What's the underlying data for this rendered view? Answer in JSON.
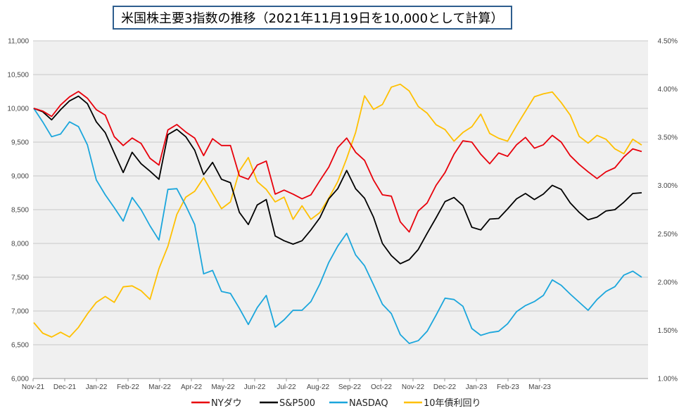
{
  "chart_data": {
    "type": "line",
    "title": "米国株主要3指数の推移（2021年11月19日を10,000として計算）",
    "x_ticks": [
      "Nov-21",
      "Dec-21",
      "Jan-22",
      "Feb-22",
      "Mar-22",
      "Apr-22",
      "May-22",
      "Jun-22",
      "Jul-22",
      "Aug-22",
      "Sep-22",
      "Oct-22",
      "Nov-22",
      "Dec-22",
      "Jan-23",
      "Feb-23",
      "Mar-23"
    ],
    "ylim_left": [
      6000,
      11000
    ],
    "yticks_left": [
      "6,000",
      "6,500",
      "7,000",
      "7,500",
      "8,000",
      "8,500",
      "9,000",
      "9,500",
      "10,000",
      "10,500",
      "11,000"
    ],
    "ylim_right": [
      1.0,
      4.5
    ],
    "yticks_right": [
      "1.00%",
      "1.50%",
      "2.00%",
      "2.50%",
      "3.00%",
      "3.50%",
      "4.00%",
      "4.50%"
    ],
    "grid": true,
    "legend_position": "bottom",
    "series": [
      {
        "name": "NYダウ",
        "axis": "left",
        "color": "#e8000b",
        "values": [
          10000,
          9960,
          9880,
          10050,
          10170,
          10250,
          10150,
          9980,
          9900,
          9580,
          9450,
          9560,
          9480,
          9260,
          9160,
          9680,
          9760,
          9650,
          9560,
          9300,
          9550,
          9450,
          9450,
          9000,
          8950,
          9160,
          9220,
          8730,
          8790,
          8730,
          8660,
          8720,
          8930,
          9130,
          9420,
          9560,
          9350,
          9230,
          8940,
          8720,
          8700,
          8320,
          8170,
          8480,
          8600,
          8860,
          9050,
          9320,
          9520,
          9500,
          9320,
          9180,
          9340,
          9290,
          9460,
          9570,
          9410,
          9460,
          9600,
          9500,
          9300,
          9170,
          9060,
          8960,
          9060,
          9120,
          9280,
          9400,
          9360
        ]
      },
      {
        "name": "S&P500",
        "axis": "left",
        "color": "#000000",
        "values": [
          10000,
          9950,
          9830,
          9980,
          10110,
          10180,
          10070,
          9800,
          9640,
          9340,
          9050,
          9350,
          9180,
          9070,
          8950,
          9610,
          9690,
          9580,
          9380,
          9020,
          9200,
          8950,
          8900,
          8460,
          8280,
          8570,
          8650,
          8110,
          8040,
          7990,
          8040,
          8200,
          8380,
          8660,
          8810,
          9080,
          8810,
          8670,
          8390,
          8000,
          7820,
          7700,
          7760,
          7910,
          8150,
          8380,
          8620,
          8680,
          8560,
          8240,
          8200,
          8360,
          8370,
          8510,
          8660,
          8740,
          8650,
          8730,
          8860,
          8800,
          8600,
          8460,
          8350,
          8390,
          8480,
          8500,
          8610,
          8740,
          8750
        ]
      },
      {
        "name": "NASDAQ",
        "axis": "left",
        "color": "#1ba6dc",
        "values": [
          10000,
          9800,
          9580,
          9620,
          9800,
          9730,
          9460,
          8940,
          8720,
          8530,
          8330,
          8680,
          8500,
          8260,
          8050,
          8800,
          8810,
          8560,
          8280,
          7550,
          7600,
          7290,
          7260,
          7040,
          6800,
          7050,
          7230,
          6760,
          6870,
          7010,
          7010,
          7140,
          7400,
          7720,
          7960,
          8150,
          7830,
          7670,
          7390,
          7100,
          6960,
          6650,
          6520,
          6560,
          6700,
          6940,
          7190,
          7170,
          7070,
          6740,
          6640,
          6680,
          6700,
          6810,
          6990,
          7080,
          7140,
          7230,
          7460,
          7380,
          7250,
          7130,
          7010,
          7170,
          7290,
          7360,
          7530,
          7590,
          7500
        ]
      },
      {
        "name": "10年債利回り",
        "axis": "right",
        "color": "#ffc000",
        "values": [
          1.58,
          1.47,
          1.43,
          1.48,
          1.43,
          1.53,
          1.67,
          1.79,
          1.85,
          1.79,
          1.95,
          1.96,
          1.91,
          1.82,
          2.14,
          2.37,
          2.7,
          2.88,
          2.94,
          3.08,
          2.92,
          2.76,
          2.83,
          3.15,
          3.29,
          3.04,
          2.96,
          2.83,
          2.88,
          2.65,
          2.79,
          2.65,
          2.72,
          2.87,
          3.04,
          3.28,
          3.55,
          3.93,
          3.79,
          3.84,
          4.02,
          4.05,
          3.98,
          3.82,
          3.75,
          3.63,
          3.58,
          3.46,
          3.55,
          3.61,
          3.74,
          3.54,
          3.49,
          3.46,
          3.62,
          3.77,
          3.92,
          3.95,
          3.97,
          3.86,
          3.73,
          3.51,
          3.44,
          3.52,
          3.48,
          3.38,
          3.33,
          3.48,
          3.42
        ]
      }
    ]
  }
}
